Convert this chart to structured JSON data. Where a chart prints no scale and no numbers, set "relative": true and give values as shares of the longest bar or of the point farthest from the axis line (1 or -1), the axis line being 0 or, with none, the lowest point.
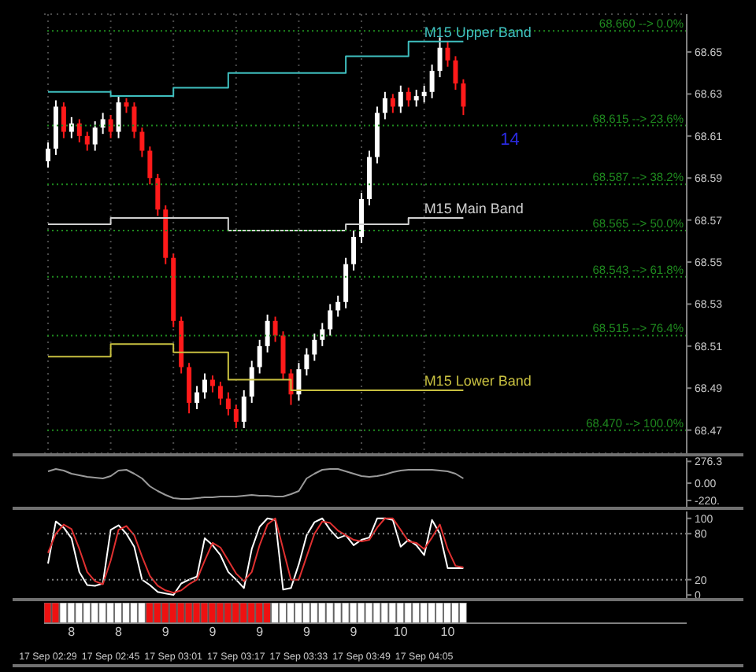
{
  "chart_data": [
    {
      "type": "candlestick",
      "categories": [
        null,
        null,
        null,
        null,
        null,
        null,
        null,
        null,
        null,
        null,
        null,
        null,
        null,
        null,
        null,
        null,
        null,
        null,
        null,
        null,
        null,
        null,
        null,
        null,
        null,
        null,
        null,
        null,
        null,
        null,
        null,
        null,
        null,
        null,
        null,
        null,
        null,
        null,
        null,
        null,
        null,
        null,
        null,
        null,
        null,
        null,
        null,
        null,
        null,
        null,
        null,
        null,
        null,
        null,
        null,
        null,
        null,
        null,
        null,
        null,
        null,
        null,
        null,
        null,
        null,
        null,
        null,
        null,
        null,
        null,
        null,
        null,
        null,
        null,
        null,
        null,
        null,
        null,
        null,
        null,
        null,
        null
      ],
      "ohlc": [
        [
          68.598,
          68.607,
          68.595,
          68.604
        ],
        [
          68.604,
          68.627,
          68.601,
          68.624
        ],
        [
          68.624,
          68.626,
          68.609,
          68.612
        ],
        [
          68.612,
          68.619,
          68.609,
          68.616
        ],
        [
          68.616,
          68.618,
          68.607,
          68.61
        ],
        [
          68.61,
          68.612,
          68.603,
          68.606
        ],
        [
          68.606,
          68.617,
          68.603,
          68.614
        ],
        [
          68.614,
          68.621,
          68.611,
          68.618
        ],
        [
          68.618,
          68.62,
          68.609,
          68.612
        ],
        [
          68.612,
          68.629,
          68.609,
          68.626
        ],
        [
          68.626,
          68.628,
          68.621,
          68.624
        ],
        [
          68.624,
          68.626,
          68.609,
          68.612
        ],
        [
          68.612,
          68.614,
          68.6,
          68.603
        ],
        [
          68.603,
          68.605,
          68.587,
          68.59
        ],
        [
          68.59,
          68.592,
          68.572,
          68.575
        ],
        [
          68.575,
          68.577,
          68.549,
          68.552
        ],
        [
          68.552,
          68.554,
          68.519,
          68.522
        ],
        [
          68.522,
          68.524,
          68.497,
          68.5
        ],
        [
          68.5,
          68.502,
          68.478,
          68.483
        ],
        [
          68.483,
          68.491,
          68.48,
          68.488
        ],
        [
          68.488,
          68.497,
          68.485,
          68.494
        ],
        [
          68.494,
          68.496,
          68.488,
          68.491
        ],
        [
          68.491,
          68.493,
          68.482,
          68.485
        ],
        [
          68.485,
          68.488,
          68.477,
          68.48
        ],
        [
          68.48,
          68.482,
          68.471,
          68.474
        ],
        [
          68.474,
          68.489,
          68.471,
          68.486
        ],
        [
          68.486,
          68.503,
          68.483,
          68.5
        ],
        [
          68.5,
          68.513,
          68.497,
          68.51
        ],
        [
          68.51,
          68.525,
          68.507,
          68.522
        ],
        [
          68.522,
          68.524,
          68.512,
          68.515
        ],
        [
          68.515,
          68.517,
          68.494,
          68.497
        ],
        [
          68.497,
          68.499,
          68.482,
          68.487
        ],
        [
          68.487,
          68.502,
          68.484,
          68.499
        ],
        [
          68.499,
          68.509,
          68.496,
          68.506
        ],
        [
          68.506,
          68.516,
          68.503,
          68.513
        ],
        [
          68.513,
          68.521,
          68.51,
          68.518
        ],
        [
          68.518,
          68.53,
          68.515,
          68.527
        ],
        [
          68.527,
          68.534,
          68.524,
          68.531
        ],
        [
          68.531,
          68.552,
          68.528,
          68.549
        ],
        [
          68.549,
          68.565,
          68.546,
          68.562
        ],
        [
          68.562,
          68.583,
          68.559,
          68.58
        ],
        [
          68.58,
          68.603,
          68.577,
          68.6
        ],
        [
          68.6,
          68.624,
          68.597,
          68.621
        ],
        [
          68.621,
          68.631,
          68.618,
          68.628
        ],
        [
          68.628,
          68.63,
          68.621,
          68.624
        ],
        [
          68.624,
          68.634,
          68.621,
          68.631
        ],
        [
          68.631,
          68.633,
          68.624,
          68.627
        ],
        [
          68.627,
          68.632,
          68.624,
          68.629
        ],
        [
          68.629,
          68.634,
          68.626,
          68.631
        ],
        [
          68.631,
          68.644,
          68.628,
          68.641
        ],
        [
          68.641,
          68.657,
          68.638,
          68.652
        ],
        [
          68.652,
          68.655,
          68.643,
          68.646
        ],
        [
          68.646,
          68.648,
          68.632,
          68.635
        ],
        [
          68.635,
          68.637,
          68.62,
          68.624
        ],
        null,
        null,
        null,
        null,
        null,
        null,
        null,
        null,
        null,
        null,
        null,
        null,
        null,
        null,
        null,
        null,
        null,
        null,
        null,
        null,
        null,
        null,
        null,
        null,
        null,
        null,
        null,
        null
      ],
      "series": [
        {
          "name": "M15 Upper Band",
          "type": "step",
          "color": "#3fbfbf",
          "values": [
            68.631,
            68.631,
            68.631,
            68.631,
            68.631,
            68.631,
            68.631,
            68.631,
            68.629,
            68.629,
            68.629,
            68.629,
            68.629,
            68.629,
            68.629,
            68.629,
            68.633,
            68.633,
            68.633,
            68.633,
            68.633,
            68.633,
            68.633,
            68.64,
            68.64,
            68.64,
            68.64,
            68.64,
            68.64,
            68.64,
            68.64,
            68.64,
            68.64,
            68.64,
            68.64,
            68.64,
            68.64,
            68.64,
            68.648,
            68.648,
            68.648,
            68.648,
            68.648,
            68.648,
            68.648,
            68.648,
            68.655,
            68.655,
            68.655,
            68.655,
            68.655,
            68.655,
            68.655,
            68.655,
            null,
            null,
            null,
            null,
            null,
            null,
            null,
            null,
            null,
            null,
            null,
            null,
            null,
            null,
            null,
            null,
            null,
            null,
            null,
            null,
            null,
            null,
            null,
            null,
            null,
            null,
            null,
            null
          ]
        },
        {
          "name": "M15 Main Band",
          "type": "step",
          "color": "#d0d0d0",
          "values": [
            68.568,
            68.568,
            68.568,
            68.568,
            68.568,
            68.568,
            68.568,
            68.568,
            68.571,
            68.571,
            68.571,
            68.571,
            68.571,
            68.571,
            68.571,
            68.571,
            68.571,
            68.571,
            68.571,
            68.571,
            68.571,
            68.571,
            68.571,
            68.565,
            68.565,
            68.565,
            68.565,
            68.565,
            68.565,
            68.565,
            68.565,
            68.565,
            68.565,
            68.565,
            68.565,
            68.565,
            68.565,
            68.565,
            68.568,
            68.568,
            68.568,
            68.568,
            68.568,
            68.568,
            68.568,
            68.568,
            68.571,
            68.571,
            68.571,
            68.571,
            68.571,
            68.571,
            68.571,
            68.571,
            null,
            null,
            null,
            null,
            null,
            null,
            null,
            null,
            null,
            null,
            null,
            null,
            null,
            null,
            null,
            null,
            null,
            null,
            null,
            null,
            null,
            null,
            null,
            null,
            null,
            null,
            null,
            null
          ]
        },
        {
          "name": "M15 Lower Band",
          "type": "step",
          "color": "#c8c040",
          "values": [
            68.505,
            68.505,
            68.505,
            68.505,
            68.505,
            68.505,
            68.505,
            68.505,
            68.511,
            68.511,
            68.511,
            68.511,
            68.511,
            68.511,
            68.511,
            68.511,
            68.507,
            68.507,
            68.507,
            68.507,
            68.507,
            68.507,
            68.507,
            68.494,
            68.494,
            68.494,
            68.494,
            68.494,
            68.494,
            68.494,
            68.494,
            68.489,
            68.489,
            68.489,
            68.489,
            68.489,
            68.489,
            68.489,
            68.489,
            68.489,
            68.489,
            68.489,
            68.489,
            68.489,
            68.489,
            68.489,
            68.489,
            68.489,
            68.489,
            68.489,
            68.489,
            68.489,
            68.489,
            68.489,
            null,
            null,
            null,
            null,
            null,
            null,
            null,
            null,
            null,
            null,
            null,
            null,
            null,
            null,
            null,
            null,
            null,
            null,
            null,
            null,
            null,
            null,
            null,
            null,
            null,
            null,
            null,
            null
          ]
        }
      ],
      "ylim": [
        68.459,
        68.668
      ],
      "yticks": [
        68.47,
        68.49,
        68.51,
        68.53,
        68.55,
        68.57,
        68.59,
        68.61,
        68.63,
        68.65
      ],
      "ref_lines": [
        {
          "axis": "y",
          "value": 68.66,
          "label": "68.660 --> 0.0%",
          "color": "#1f8a1f",
          "line_style": "dotted"
        },
        {
          "axis": "y",
          "value": 68.615,
          "label": "68.615 --> 23.6%",
          "color": "#1f8a1f",
          "line_style": "dotted"
        },
        {
          "axis": "y",
          "value": 68.587,
          "label": "68.587 --> 38.2%",
          "color": "#1f8a1f",
          "line_style": "dotted"
        },
        {
          "axis": "y",
          "value": 68.565,
          "label": "68.565 --> 50.0%",
          "color": "#1f8a1f",
          "line_style": "dotted"
        },
        {
          "axis": "y",
          "value": 68.543,
          "label": "68.543 --> 61.8%",
          "color": "#1f8a1f",
          "line_style": "dotted"
        },
        {
          "axis": "y",
          "value": 68.515,
          "label": "68.515 --> 76.4%",
          "color": "#1f8a1f",
          "line_style": "dotted"
        },
        {
          "axis": "y",
          "value": 68.47,
          "label": "68.470 --> 100.0%",
          "color": "#1f8a1f",
          "line_style": "dotted"
        }
      ],
      "annotations": [
        "14"
      ],
      "grid": true,
      "tick_labels": "y"
    },
    {
      "type": "line",
      "categories": [
        null,
        null,
        null,
        null,
        null,
        null,
        null,
        null,
        null,
        null,
        null,
        null,
        null,
        null,
        null,
        null,
        null,
        null,
        null,
        null,
        null,
        null,
        null,
        null,
        null,
        null,
        null,
        null,
        null,
        null,
        null,
        null,
        null,
        null,
        null,
        null,
        null,
        null,
        null,
        null,
        null,
        null,
        null,
        null,
        null,
        null,
        null,
        null,
        null,
        null,
        null,
        null,
        null,
        null,
        null,
        null,
        null,
        null,
        null,
        null,
        null,
        null,
        null,
        null,
        null,
        null,
        null,
        null,
        null,
        null,
        null,
        null,
        null,
        null,
        null,
        null,
        null,
        null,
        null,
        null,
        null,
        null
      ],
      "series": [
        {
          "color": "#9a9a9a",
          "values": [
            150,
            180,
            160,
            120,
            100,
            80,
            70,
            60,
            90,
            160,
            170,
            120,
            60,
            -40,
            -100,
            -150,
            -190,
            -200,
            -200,
            -190,
            -180,
            -180,
            -170,
            -170,
            -170,
            -160,
            -150,
            -160,
            -160,
            -170,
            -170,
            -140,
            -100,
            60,
            120,
            170,
            180,
            180,
            150,
            120,
            90,
            80,
            90,
            110,
            140,
            160,
            170,
            170,
            170,
            170,
            160,
            150,
            120,
            60,
            null,
            null,
            null,
            null,
            null,
            null,
            null,
            null,
            null,
            null,
            null,
            null,
            null,
            null,
            null,
            null,
            null,
            null,
            null,
            null,
            null,
            null,
            null,
            null,
            null,
            null,
            null,
            null
          ]
        }
      ],
      "ylim": [
        -300,
        320
      ],
      "yticks": [
        276.3,
        {
          "value": 0,
          "label": "0.00"
        },
        {
          "value": -220,
          "label": "-220."
        }
      ],
      "tick_labels": "y"
    },
    {
      "type": "line",
      "categories": [
        null,
        null,
        null,
        null,
        null,
        null,
        null,
        null,
        null,
        null,
        null,
        null,
        null,
        null,
        null,
        null,
        null,
        null,
        null,
        null,
        null,
        null,
        null,
        null,
        null,
        null,
        null,
        null,
        null,
        null,
        null,
        null,
        null,
        null,
        null,
        null,
        null,
        null,
        null,
        null,
        null,
        null,
        null,
        null,
        null,
        null,
        null,
        null,
        null,
        null,
        null,
        null,
        null,
        null,
        null,
        null,
        null,
        null,
        null,
        null,
        null,
        null,
        null,
        null,
        null,
        null,
        null,
        null,
        null,
        null,
        null,
        null,
        null,
        null,
        null,
        null,
        null,
        null,
        null,
        null,
        null,
        null
      ],
      "series": [
        {
          "color": "#ffffff",
          "values": [
            41,
            96,
            88,
            74,
            30,
            13,
            12,
            15,
            85,
            91,
            80,
            63,
            20,
            13,
            4,
            2,
            0,
            15,
            20,
            24,
            74,
            65,
            52,
            30,
            20,
            9,
            60,
            89,
            100,
            98,
            7,
            9,
            40,
            78,
            95,
            100,
            85,
            74,
            78,
            65,
            72,
            75,
            100,
            100,
            98,
            63,
            72,
            65,
            52,
            98,
            80,
            35,
            35,
            35,
            null,
            null,
            null,
            null,
            null,
            null,
            null,
            null,
            null,
            null,
            null,
            null,
            null,
            null,
            null,
            null,
            null,
            null,
            null,
            null,
            null,
            null,
            null,
            null,
            null,
            null,
            null,
            null
          ]
        },
        {
          "color": "#e03030",
          "values": [
            55,
            80,
            92,
            86,
            60,
            30,
            18,
            14,
            45,
            85,
            90,
            78,
            50,
            25,
            12,
            6,
            3,
            6,
            14,
            20,
            45,
            68,
            62,
            45,
            28,
            18,
            30,
            65,
            92,
            100,
            60,
            20,
            20,
            50,
            80,
            96,
            94,
            84,
            78,
            72,
            70,
            72,
            88,
            100,
            100,
            85,
            70,
            68,
            60,
            75,
            92,
            60,
            38,
            36,
            null,
            null,
            null,
            null,
            null,
            null,
            null,
            null,
            null,
            null,
            null,
            null,
            null,
            null,
            null,
            null,
            null,
            null,
            null,
            null,
            null,
            null,
            null,
            null,
            null,
            null,
            null,
            null
          ]
        }
      ],
      "ylim": [
        -4,
        109
      ],
      "yticks": [
        0,
        20,
        80,
        100
      ],
      "ref_lines": [
        {
          "axis": "y",
          "value": 80,
          "color": "#808080",
          "line_style": "dotted"
        },
        {
          "axis": "y",
          "value": 20,
          "color": "#808080",
          "line_style": "dotted"
        }
      ],
      "tick_labels": "y"
    },
    {
      "type": "bar",
      "relative": true,
      "categories": [
        "17 Sep 02:29",
        null,
        null,
        null,
        null,
        null,
        null,
        null,
        "17 Sep 02:45",
        null,
        null,
        null,
        null,
        null,
        null,
        null,
        "17 Sep 03:01",
        null,
        null,
        null,
        null,
        null,
        null,
        null,
        "17 Sep 03:17",
        null,
        null,
        null,
        null,
        null,
        null,
        null,
        "17 Sep 03:33",
        null,
        null,
        null,
        null,
        null,
        null,
        null,
        "17 Sep 03:49",
        null,
        null,
        null,
        null,
        null,
        null,
        null,
        "17 Sep 04:05",
        null,
        null,
        null,
        null,
        null,
        null,
        null,
        null,
        null,
        null,
        null,
        null,
        null,
        null,
        null,
        null,
        null,
        null,
        null,
        null,
        null,
        null,
        null,
        null,
        null,
        null,
        null,
        null,
        null,
        null,
        null,
        null,
        null
      ],
      "values": [
        1,
        1,
        1,
        1,
        1,
        1,
        1,
        1,
        1,
        1,
        1,
        1,
        1,
        1,
        1,
        1,
        1,
        1,
        1,
        1,
        1,
        1,
        1,
        1,
        1,
        1,
        1,
        1,
        1,
        1,
        1,
        1,
        1,
        1,
        1,
        1,
        1,
        1,
        1,
        1,
        1,
        1,
        1,
        1,
        1,
        1,
        1,
        1,
        1,
        1,
        1,
        1,
        1,
        1,
        null,
        null,
        null,
        null,
        null,
        null,
        null,
        null,
        null,
        null,
        null,
        null,
        null,
        null,
        null,
        null,
        null,
        null,
        null,
        null,
        null,
        null,
        null,
        null,
        null,
        null,
        null,
        null
      ],
      "colors": [
        "#ee1111",
        "#ee1111",
        "#ffffff",
        "#ffffff",
        "#ffffff",
        "#ffffff",
        "#ffffff",
        "#ffffff",
        "#ffffff",
        "#ffffff",
        "#ffffff",
        "#ffffff",
        "#ffffff",
        "#ee1111",
        "#ee1111",
        "#ee1111",
        "#ee1111",
        "#ee1111",
        "#ee1111",
        "#ee1111",
        "#ee1111",
        "#ee1111",
        "#ee1111",
        "#ee1111",
        "#ee1111",
        "#ee1111",
        "#ee1111",
        "#ee1111",
        "#ee1111",
        "#ffffff",
        "#ffffff",
        "#ffffff",
        "#ffffff",
        "#ffffff",
        "#ffffff",
        "#ffffff",
        "#ffffff",
        "#ffffff",
        "#ffffff",
        "#ffffff",
        "#ffffff",
        "#ffffff",
        "#ffffff",
        "#ffffff",
        "#ffffff",
        "#ffffff",
        "#ffffff",
        "#ffffff",
        "#ffffff",
        "#ffffff",
        "#ffffff",
        "#ffffff",
        "#ffffff",
        "#ffffff",
        null,
        null,
        null,
        null,
        null,
        null,
        null,
        null,
        null,
        null,
        null,
        null,
        null,
        null,
        null,
        null,
        null,
        null,
        null,
        null,
        null,
        null,
        null,
        null,
        null,
        null,
        null,
        null
      ],
      "annotations": [
        "8",
        "8",
        "9",
        "9",
        "9",
        "9",
        "9",
        "10",
        "10"
      ],
      "tick_labels": "x"
    }
  ]
}
